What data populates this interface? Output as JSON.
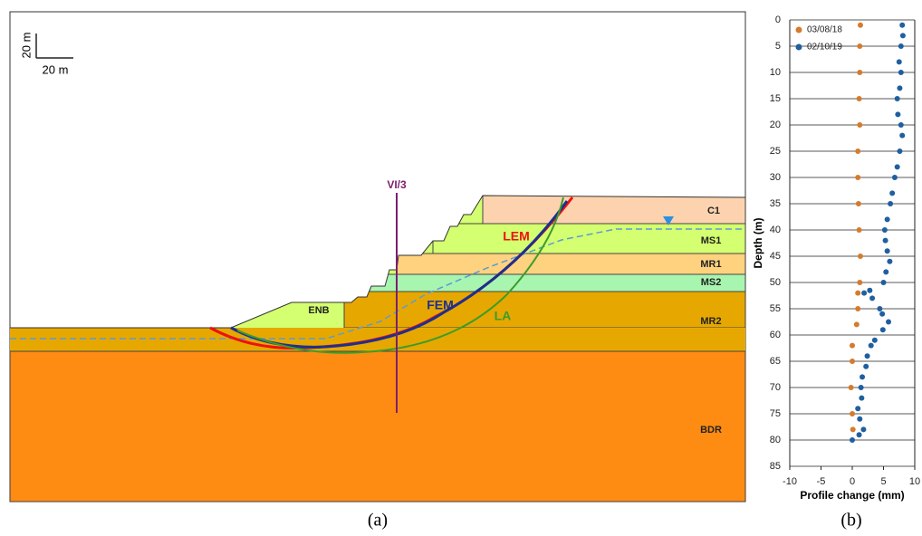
{
  "panel_a": {
    "scale_vertical": "20 m",
    "scale_horizontal": "20 m",
    "borehole": "VI/3",
    "layers": {
      "c1": "C1",
      "ms1": "MS1",
      "mr1": "MR1",
      "ms2": "MS2",
      "mr2": "MR2",
      "bdr": "BDR",
      "enb": "ENB"
    },
    "surfaces": {
      "lem": "LEM",
      "fem": "FEM",
      "la": "LA"
    },
    "caption": "(a)"
  },
  "chart_data": {
    "type": "scatter",
    "caption": "(b)",
    "x_label": "Profile change (mm)",
    "y_label": "Depth (m)",
    "xlim": [
      -10,
      10
    ],
    "xticks": [
      -10,
      -5,
      0,
      5,
      10
    ],
    "ylim": [
      0,
      85
    ],
    "yticks": [
      0,
      5,
      10,
      15,
      20,
      25,
      30,
      35,
      40,
      45,
      50,
      55,
      60,
      65,
      70,
      75,
      80,
      85
    ],
    "y_inverted": true,
    "grid": true,
    "legend": "upper-left",
    "series": [
      {
        "name": "03/08/18",
        "color": "#d57b2e",
        "x": [
          1.3,
          1.2,
          1.2,
          1.1,
          1.2,
          0.9,
          0.9,
          1.0,
          1.1,
          1.3,
          1.2,
          0.9,
          0.9,
          0.7,
          0,
          0,
          -0.2,
          0,
          0.1
        ],
        "y": [
          1,
          5,
          10,
          15,
          20,
          25,
          30,
          35,
          40,
          45,
          50,
          52,
          55,
          58,
          62,
          65,
          70,
          75,
          78
        ]
      },
      {
        "name": "02/10/19",
        "color": "#1f5fa0",
        "x": [
          8,
          8.1,
          7.8,
          7.5,
          7.8,
          7.6,
          7.2,
          7.3,
          7.8,
          8,
          7.6,
          7.2,
          6.8,
          6.4,
          6.1,
          5.6,
          5.2,
          5.3,
          5.6,
          6,
          5.4,
          5,
          2.8,
          1.9,
          3.2,
          4.4,
          4.8,
          5.8,
          4.9,
          3.6,
          3,
          2.4,
          2.2,
          1.6,
          1.4,
          1.5,
          0.9,
          1.2,
          1.8,
          1.1,
          0
        ],
        "y": [
          1,
          3,
          5,
          8,
          10,
          13,
          15,
          18,
          20,
          22,
          25,
          28,
          30,
          33,
          35,
          38,
          40,
          42,
          44,
          46,
          48,
          50,
          51.5,
          52,
          53,
          55,
          56,
          57.5,
          59,
          61,
          62,
          64,
          66,
          68,
          70,
          72,
          74,
          76,
          78,
          79,
          80
        ]
      }
    ]
  }
}
